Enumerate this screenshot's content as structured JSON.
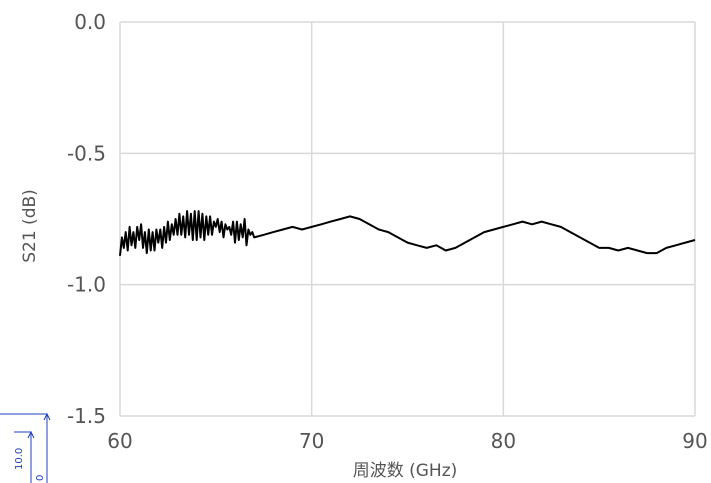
{
  "chart_data": {
    "type": "line",
    "title": "",
    "xlabel": "周波数 (GHz)",
    "ylabel": "S21 (dB)",
    "xlim": [
      60,
      90
    ],
    "ylim": [
      -1.5,
      0.0
    ],
    "x_ticks": [
      60,
      70,
      80,
      90
    ],
    "y_ticks": [
      0.0,
      -0.5,
      -1.0,
      -1.5
    ],
    "x_tick_labels": [
      "60",
      "70",
      "80",
      "90"
    ],
    "y_tick_labels": [
      "0.0",
      "-0.5",
      "-1.0",
      "-1.5"
    ],
    "grid": true,
    "legend": "none",
    "series": [
      {
        "color": "#000000",
        "x": [
          60.0,
          60.1,
          60.2,
          60.3,
          60.4,
          60.5,
          60.6,
          60.7,
          60.8,
          60.9,
          61.0,
          61.1,
          61.2,
          61.3,
          61.4,
          61.5,
          61.6,
          61.7,
          61.8,
          61.9,
          62.0,
          62.1,
          62.2,
          62.3,
          62.4,
          62.5,
          62.6,
          62.7,
          62.8,
          62.9,
          63.0,
          63.1,
          63.2,
          63.3,
          63.4,
          63.5,
          63.6,
          63.7,
          63.8,
          63.9,
          64.0,
          64.1,
          64.2,
          64.3,
          64.4,
          64.5,
          64.6,
          64.7,
          64.8,
          64.9,
          65.0,
          65.1,
          65.2,
          65.3,
          65.4,
          65.5,
          65.6,
          65.7,
          65.8,
          65.9,
          66.0,
          66.1,
          66.2,
          66.3,
          66.4,
          66.5,
          66.6,
          66.7,
          66.8,
          66.9,
          67.0,
          67.5,
          68.0,
          68.5,
          69.0,
          69.5,
          70.0,
          70.5,
          71.0,
          71.5,
          72.0,
          72.5,
          73.0,
          73.5,
          74.0,
          74.5,
          75.0,
          75.5,
          76.0,
          76.5,
          77.0,
          77.5,
          78.0,
          78.5,
          79.0,
          79.5,
          80.0,
          80.5,
          81.0,
          81.5,
          82.0,
          82.5,
          83.0,
          83.5,
          84.0,
          84.5,
          85.0,
          85.5,
          86.0,
          86.5,
          87.0,
          87.5,
          88.0,
          88.5,
          89.0,
          89.5,
          90.0
        ],
        "y": [
          -0.89,
          -0.82,
          -0.86,
          -0.8,
          -0.87,
          -0.78,
          -0.85,
          -0.8,
          -0.86,
          -0.78,
          -0.83,
          -0.77,
          -0.86,
          -0.8,
          -0.88,
          -0.79,
          -0.87,
          -0.8,
          -0.87,
          -0.79,
          -0.84,
          -0.79,
          -0.86,
          -0.78,
          -0.84,
          -0.76,
          -0.83,
          -0.77,
          -0.81,
          -0.75,
          -0.81,
          -0.73,
          -0.81,
          -0.74,
          -0.82,
          -0.72,
          -0.81,
          -0.73,
          -0.83,
          -0.72,
          -0.83,
          -0.72,
          -0.82,
          -0.73,
          -0.83,
          -0.74,
          -0.81,
          -0.74,
          -0.81,
          -0.76,
          -0.78,
          -0.75,
          -0.8,
          -0.76,
          -0.82,
          -0.77,
          -0.79,
          -0.78,
          -0.81,
          -0.76,
          -0.84,
          -0.76,
          -0.83,
          -0.77,
          -0.82,
          -0.75,
          -0.85,
          -0.79,
          -0.81,
          -0.8,
          -0.82,
          -0.81,
          -0.8,
          -0.79,
          -0.78,
          -0.79,
          -0.78,
          -0.77,
          -0.76,
          -0.75,
          -0.74,
          -0.75,
          -0.77,
          -0.79,
          -0.8,
          -0.82,
          -0.84,
          -0.85,
          -0.86,
          -0.85,
          -0.87,
          -0.86,
          -0.84,
          -0.82,
          -0.8,
          -0.79,
          -0.78,
          -0.77,
          -0.76,
          -0.77,
          -0.76,
          -0.77,
          -0.78,
          -0.8,
          -0.82,
          -0.84,
          -0.86,
          -0.86,
          -0.87,
          -0.86,
          -0.87,
          -0.88,
          -0.88,
          -0.86,
          -0.85,
          -0.84,
          -0.83
        ]
      }
    ]
  },
  "annotation": {
    "dimension_label": "10.0",
    "zero_label": "0"
  }
}
